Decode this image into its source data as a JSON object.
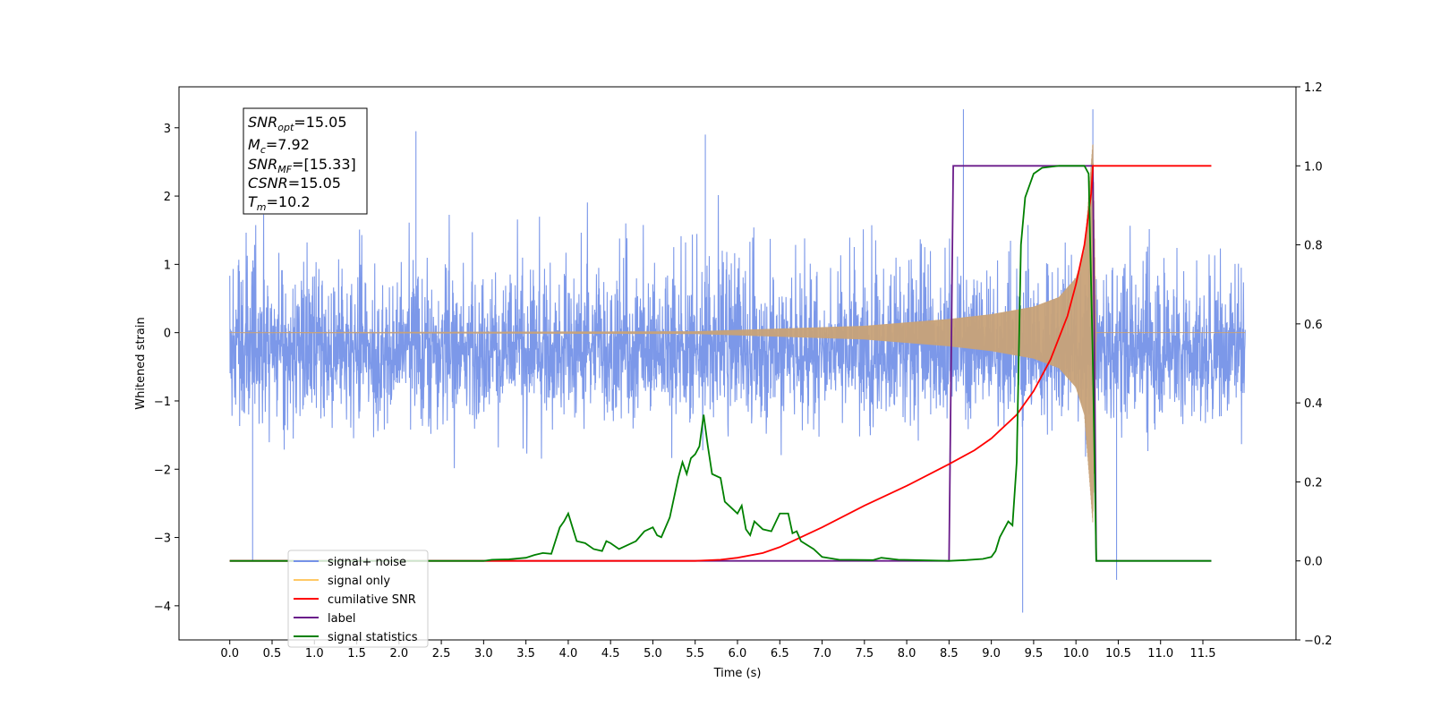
{
  "chart_data": {
    "type": "line",
    "xlabel": "Time (s)",
    "ylabel": "Whitened strain",
    "xlim": [
      -0.6,
      12.6
    ],
    "ylim_left": [
      -4.5,
      3.6
    ],
    "ylim_right": [
      -0.2,
      1.2
    ],
    "x_ticks": [
      "0.0",
      "0.5",
      "1.0",
      "1.5",
      "2.0",
      "2.5",
      "3.0",
      "3.5",
      "4.0",
      "4.5",
      "5.0",
      "5.5",
      "6.0",
      "6.5",
      "7.0",
      "7.5",
      "8.0",
      "8.5",
      "9.0",
      "9.5",
      "10.0",
      "10.5",
      "11.0",
      "11.5"
    ],
    "y_ticks_left": [
      "3",
      "2",
      "1",
      "0",
      "−1",
      "−2",
      "−3",
      "−4"
    ],
    "y_ticks_right": [
      "1.2",
      "1.0",
      "0.8",
      "0.6",
      "0.4",
      "0.2",
      "0.0",
      "−0.2"
    ],
    "grid": false,
    "legend_placement": "lower-left",
    "annotation": {
      "snr_opt": {
        "base": "SNR",
        "sub": "opt",
        "value": "=15.05"
      },
      "mc": {
        "base": "M",
        "sub": "c",
        "value": "=7.92"
      },
      "snr_mf": {
        "base": "SNR",
        "sub": "MF",
        "value": "=[15.33]"
      },
      "csnr": {
        "base": "CSNR",
        "value": "=15.05"
      },
      "tm": {
        "base": "T",
        "sub": "m",
        "value": "=10.2"
      }
    },
    "series": [
      {
        "name": "signal+ noise",
        "color": "#7592e8",
        "axis": "left",
        "kind": "noise",
        "x_range": [
          0.0,
          12.0
        ],
        "envelope_typical": 2.0,
        "max_peak": 3.27,
        "min_peak": -4.1
      },
      {
        "name": "signal only",
        "color": "#c8a278",
        "axis": "left",
        "kind": "chirp",
        "x_range": [
          0.0,
          10.24
        ],
        "merger_time": 10.2,
        "envelope": [
          [
            0.0,
            0.005
          ],
          [
            5.5,
            0.02
          ],
          [
            6.5,
            0.06
          ],
          [
            7.5,
            0.1
          ],
          [
            8.5,
            0.2
          ],
          [
            9.0,
            0.27
          ],
          [
            9.5,
            0.38
          ],
          [
            9.8,
            0.52
          ],
          [
            10.0,
            0.8
          ],
          [
            10.1,
            1.2
          ],
          [
            10.17,
            2.3
          ],
          [
            10.2,
            2.8
          ],
          [
            10.24,
            0.0
          ]
        ]
      },
      {
        "name": "cumilative SNR",
        "color": "#ff0000",
        "axis": "right",
        "points": [
          [
            0.0,
            0.0
          ],
          [
            5.5,
            0.0
          ],
          [
            5.8,
            0.003
          ],
          [
            6.0,
            0.008
          ],
          [
            6.3,
            0.02
          ],
          [
            6.5,
            0.035
          ],
          [
            6.7,
            0.055
          ],
          [
            7.0,
            0.085
          ],
          [
            7.5,
            0.14
          ],
          [
            8.0,
            0.19
          ],
          [
            8.5,
            0.245
          ],
          [
            8.8,
            0.28
          ],
          [
            9.0,
            0.31
          ],
          [
            9.3,
            0.37
          ],
          [
            9.5,
            0.43
          ],
          [
            9.7,
            0.51
          ],
          [
            9.9,
            0.62
          ],
          [
            10.0,
            0.7
          ],
          [
            10.1,
            0.8
          ],
          [
            10.18,
            0.93
          ],
          [
            10.2,
            1.0
          ],
          [
            11.0,
            1.0
          ],
          [
            11.6,
            1.0
          ]
        ]
      },
      {
        "name": "label",
        "color": "#6a1b8a",
        "axis": "right",
        "points": [
          [
            0.0,
            0.0
          ],
          [
            8.5,
            0.0
          ],
          [
            8.55,
            1.0
          ],
          [
            10.2,
            1.0
          ],
          [
            10.24,
            0.0
          ],
          [
            11.6,
            0.0
          ]
        ]
      },
      {
        "name": "signal statistics",
        "color": "#008000",
        "axis": "right",
        "points": [
          [
            0.0,
            0.0
          ],
          [
            3.0,
            0.0
          ],
          [
            3.1,
            0.003
          ],
          [
            3.3,
            0.004
          ],
          [
            3.5,
            0.008
          ],
          [
            3.6,
            0.015
          ],
          [
            3.7,
            0.02
          ],
          [
            3.8,
            0.018
          ],
          [
            3.9,
            0.085
          ],
          [
            3.95,
            0.1
          ],
          [
            4.0,
            0.12
          ],
          [
            4.05,
            0.085
          ],
          [
            4.1,
            0.05
          ],
          [
            4.2,
            0.045
          ],
          [
            4.3,
            0.03
          ],
          [
            4.4,
            0.025
          ],
          [
            4.45,
            0.05
          ],
          [
            4.5,
            0.045
          ],
          [
            4.6,
            0.03
          ],
          [
            4.7,
            0.04
          ],
          [
            4.8,
            0.05
          ],
          [
            4.9,
            0.075
          ],
          [
            5.0,
            0.085
          ],
          [
            5.05,
            0.065
          ],
          [
            5.1,
            0.06
          ],
          [
            5.2,
            0.11
          ],
          [
            5.3,
            0.21
          ],
          [
            5.35,
            0.25
          ],
          [
            5.4,
            0.22
          ],
          [
            5.45,
            0.26
          ],
          [
            5.5,
            0.27
          ],
          [
            5.55,
            0.29
          ],
          [
            5.6,
            0.37
          ],
          [
            5.65,
            0.29
          ],
          [
            5.7,
            0.22
          ],
          [
            5.8,
            0.21
          ],
          [
            5.85,
            0.15
          ],
          [
            5.9,
            0.14
          ],
          [
            6.0,
            0.12
          ],
          [
            6.05,
            0.14
          ],
          [
            6.1,
            0.08
          ],
          [
            6.15,
            0.065
          ],
          [
            6.2,
            0.1
          ],
          [
            6.3,
            0.08
          ],
          [
            6.4,
            0.075
          ],
          [
            6.5,
            0.12
          ],
          [
            6.6,
            0.12
          ],
          [
            6.65,
            0.07
          ],
          [
            6.7,
            0.075
          ],
          [
            6.75,
            0.05
          ],
          [
            6.9,
            0.03
          ],
          [
            7.0,
            0.01
          ],
          [
            7.2,
            0.003
          ],
          [
            7.6,
            0.002
          ],
          [
            7.7,
            0.008
          ],
          [
            7.9,
            0.003
          ],
          [
            8.5,
            0.0
          ],
          [
            8.7,
            0.002
          ],
          [
            8.9,
            0.005
          ],
          [
            9.0,
            0.01
          ],
          [
            9.05,
            0.025
          ],
          [
            9.1,
            0.06
          ],
          [
            9.15,
            0.08
          ],
          [
            9.2,
            0.1
          ],
          [
            9.25,
            0.09
          ],
          [
            9.3,
            0.25
          ],
          [
            9.35,
            0.8
          ],
          [
            9.4,
            0.92
          ],
          [
            9.5,
            0.98
          ],
          [
            9.6,
            0.995
          ],
          [
            9.8,
            1.0
          ],
          [
            10.1,
            1.0
          ],
          [
            10.15,
            0.98
          ],
          [
            10.2,
            0.5
          ],
          [
            10.24,
            0.0
          ],
          [
            11.6,
            0.0
          ]
        ]
      }
    ]
  }
}
